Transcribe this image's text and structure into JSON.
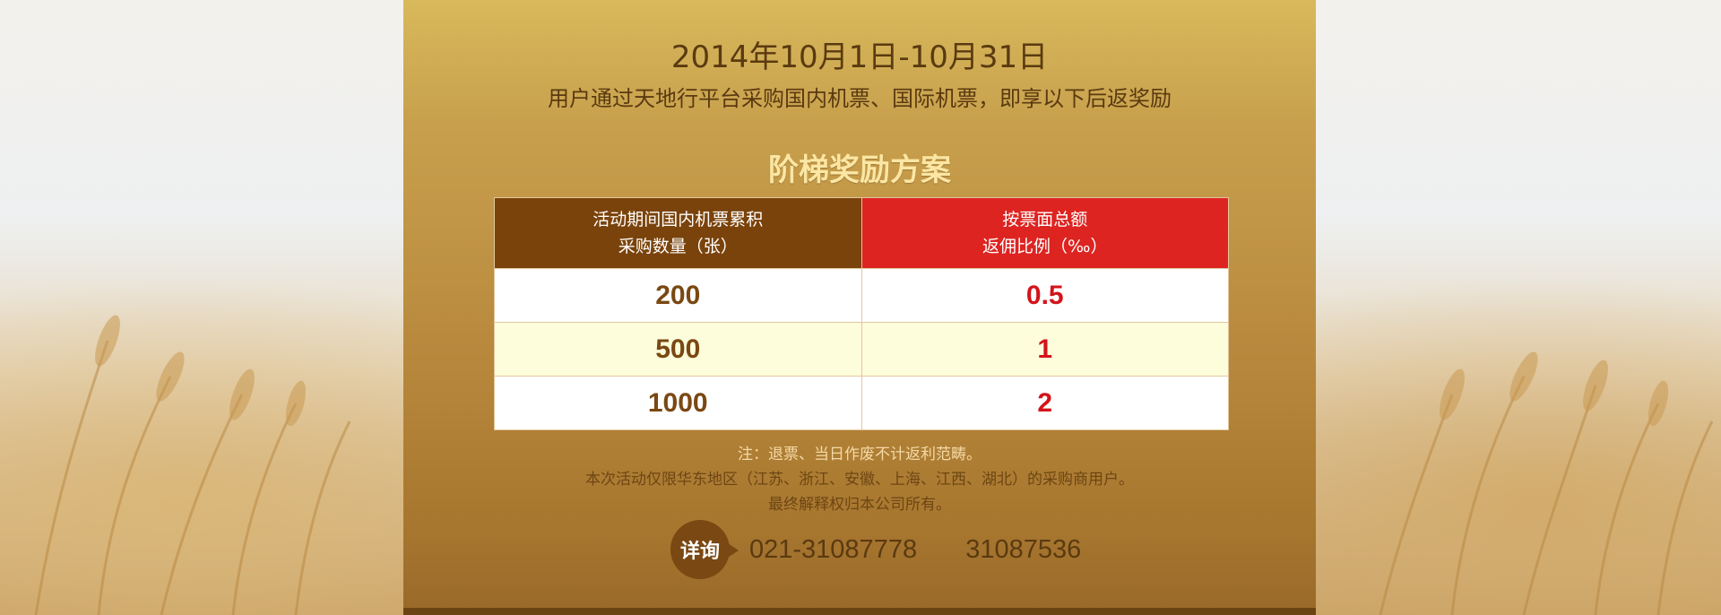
{
  "header": {
    "date_range": "2014年10月1日-10月31日",
    "subtitle": "用户通过天地行平台采购国内机票、国际机票，即享以下后返奖励"
  },
  "table": {
    "title": "阶梯奖励方案",
    "columns": [
      {
        "line1": "活动期间国内机票累积",
        "line2": "采购数量（张）"
      },
      {
        "line1": "按票面总额",
        "line2": "返佣比例（‰）"
      }
    ],
    "rows": [
      {
        "quantity": "200",
        "rate": "0.5"
      },
      {
        "quantity": "500",
        "rate": "1"
      },
      {
        "quantity": "1000",
        "rate": "2"
      }
    ]
  },
  "notes": [
    "注：退票、当日作废不计返利范畴。",
    "本次活动仅限华东地区（江苏、浙江、安徽、上海、江西、湖北）的采购商用户。",
    "最终解释权归本公司所有。"
  ],
  "contact": {
    "badge_label": "详询",
    "phones": "021-31087778   31087536"
  },
  "colors": {
    "header_brown": "#7a430b",
    "header_red": "#dd2421",
    "value_red": "#d3141a",
    "value_brown": "#7a4812",
    "title_gold": "#fbe6a3"
  }
}
